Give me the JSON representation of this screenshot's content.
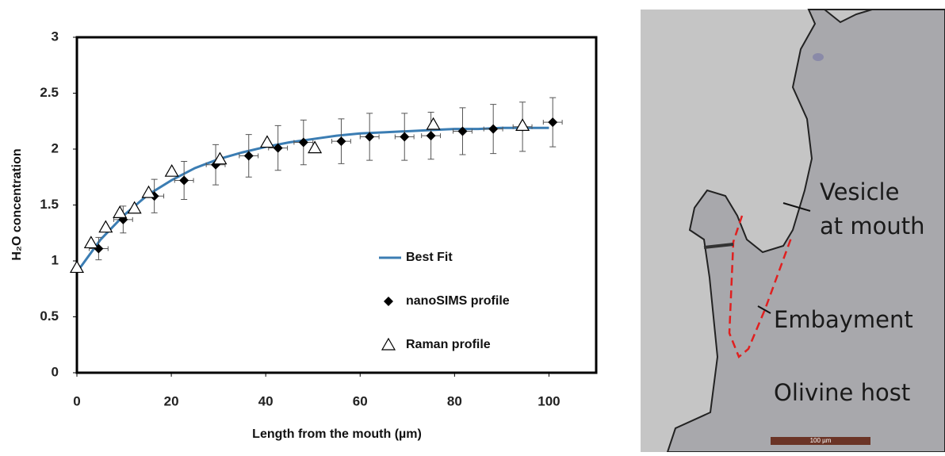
{
  "chart_data": {
    "type": "scatter",
    "x_label": "Length from the mouth (µm)",
    "y_label": "H₂O concentration",
    "xlim": [
      0,
      110
    ],
    "xticks": [
      0,
      20,
      40,
      60,
      80,
      100
    ],
    "ylim": [
      0,
      3
    ],
    "yticks": [
      0,
      0.5,
      1,
      1.5,
      2,
      2.5,
      3
    ],
    "legend": "lower right",
    "series": [
      {
        "name": "Best Fit",
        "style": "line",
        "color": "#3b7db3",
        "x": [
          0,
          5,
          10,
          15,
          20,
          25,
          30,
          35,
          40,
          45,
          50,
          55,
          60,
          65,
          70,
          75,
          80,
          85,
          90,
          95,
          100
        ],
        "values": [
          0.9,
          1.19,
          1.41,
          1.59,
          1.72,
          1.83,
          1.91,
          1.97,
          2.02,
          2.06,
          2.09,
          2.12,
          2.14,
          2.15,
          2.16,
          2.17,
          2.18,
          2.18,
          2.19,
          2.19,
          2.19
        ]
      },
      {
        "name": "nanoSIMS profile",
        "style": "diamond",
        "color": "#000000",
        "x": [
          4.6,
          9.8,
          16.4,
          22.7,
          29.4,
          36.4,
          42.6,
          48,
          56,
          62,
          69.4,
          75,
          81.7,
          88.2,
          94.4,
          100.8
        ],
        "values": [
          1.11,
          1.37,
          1.58,
          1.72,
          1.86,
          1.94,
          2.01,
          2.06,
          2.07,
          2.11,
          2.11,
          2.12,
          2.16,
          2.18,
          2.2,
          2.24
        ],
        "errors": [
          0.1,
          0.12,
          0.15,
          0.17,
          0.18,
          0.19,
          0.2,
          0.2,
          0.2,
          0.21,
          0.21,
          0.21,
          0.21,
          0.22,
          0.22,
          0.22
        ],
        "x_errors": [
          2,
          2,
          2,
          2,
          2,
          2,
          2,
          2,
          2,
          2,
          2,
          2,
          2,
          2,
          2,
          2
        ]
      },
      {
        "name": "Raman profile",
        "style": "triangle",
        "color": "#000000",
        "x": [
          0,
          3,
          6.1,
          9.1,
          12.2,
          15.2,
          20.1,
          30.3,
          40.3,
          50.4,
          75.5,
          94.4
        ],
        "values": [
          0.94,
          1.16,
          1.3,
          1.43,
          1.47,
          1.61,
          1.8,
          1.91,
          2.06,
          2.01,
          2.22,
          2.21
        ]
      }
    ]
  },
  "image": {
    "labels": [
      "Vesicle",
      "at mouth",
      "Embayment",
      "Olivine host"
    ],
    "scale_bar": "100 µm"
  }
}
